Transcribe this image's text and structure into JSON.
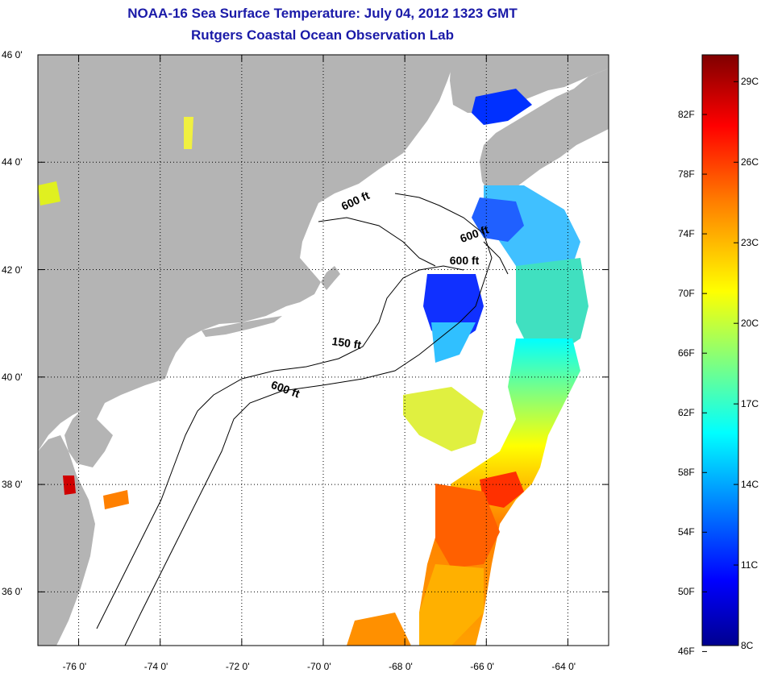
{
  "header": {
    "title": "NOAA-16 Sea Surface Temperature:  July 04, 2012 1323 GMT",
    "subtitle": "Rutgers Coastal Ocean Observation Lab"
  },
  "map": {
    "lat_ticks": [
      "46 0'",
      "44 0'",
      "42 0'",
      "40 0'",
      "38 0'",
      "36 0'"
    ],
    "lon_ticks": [
      "-76 0'",
      "-74 0'",
      "-72 0'",
      "-70 0'",
      "-68 0'",
      "-66 0'",
      "-64 0'"
    ],
    "lat_values": [
      46,
      44,
      42,
      40,
      38,
      36
    ],
    "lon_values": [
      -76,
      -74,
      -72,
      -70,
      -68,
      -66,
      -64
    ],
    "lat_range": [
      35,
      46
    ],
    "lon_range": [
      -77,
      -63
    ],
    "depth_contours": [
      {
        "label": "600 ft",
        "lon": -69.5,
        "lat": 43.1,
        "angle": 25
      },
      {
        "label": "600 ft",
        "lon": -66.6,
        "lat": 42.5,
        "angle": 20
      },
      {
        "label": "600 ft",
        "lon": -66.9,
        "lat": 42.1,
        "angle": 0
      },
      {
        "label": "150 ft",
        "lon": -69.8,
        "lat": 40.6,
        "angle": -8
      },
      {
        "label": "600 ft",
        "lon": -71.3,
        "lat": 39.8,
        "angle": -20
      }
    ],
    "colors": {
      "land": "#b4b4b4",
      "water": "#ffffff",
      "grid": "#000000"
    }
  },
  "colorbar": {
    "fahrenheit_labels": [
      "82F",
      "78F",
      "74F",
      "70F",
      "66F",
      "62F",
      "58F",
      "54F",
      "50F",
      "46F"
    ],
    "celsius_labels": [
      "29C",
      "26C",
      "23C",
      "20C",
      "17C",
      "14C",
      "11C",
      "8C"
    ],
    "range_celsius": [
      8,
      30
    ],
    "colormap": [
      "#00008f",
      "#0000ff",
      "#007fff",
      "#00ffff",
      "#7fff7f",
      "#ffff00",
      "#ff7f00",
      "#ff0000",
      "#7f0000"
    ]
  }
}
